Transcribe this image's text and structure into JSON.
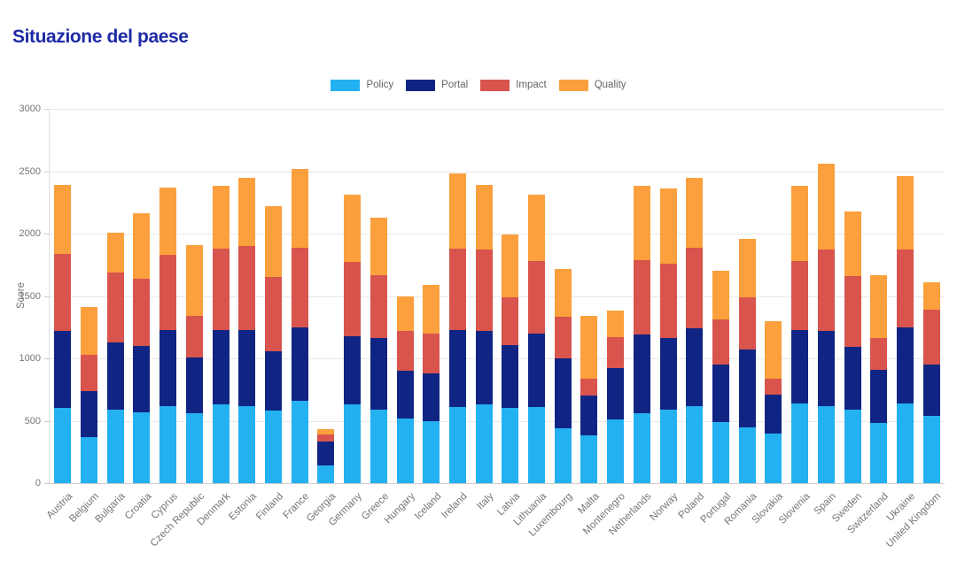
{
  "title": "Situazione del paese",
  "colors": {
    "title_text": "#1f2aa6",
    "axis_text": "#757575",
    "legend_text": "#666666",
    "gridline": "#e8e8e8",
    "baseline": "#cccccc",
    "axis_line": "#e0e0e0",
    "policy": "#23b1f2",
    "portal": "#102583",
    "impact": "#d8544d",
    "quality": "#fba03c"
  },
  "chart_data": {
    "type": "bar",
    "stacked": true,
    "title": "Situazione del paese",
    "xlabel": "",
    "ylabel": "Score",
    "ylim": [
      0,
      3000
    ],
    "ytick_step": 500,
    "grid": true,
    "legend_position": "top-center",
    "categories": [
      "Austria",
      "Belgium",
      "Bulgaria",
      "Croatia",
      "Cyprus",
      "Czech Republic",
      "Denmark",
      "Estonia",
      "Finland",
      "France",
      "Georgia",
      "Germany",
      "Greece",
      "Hungary",
      "Iceland",
      "Ireland",
      "Italy",
      "Latvia",
      "Lithuania",
      "Luxembourg",
      "Malta",
      "Montenegro",
      "Netherlands",
      "Norway",
      "Poland",
      "Portugal",
      "Romania",
      "Slovakia",
      "Slovenia",
      "Spain",
      "Sweden",
      "Switzerland",
      "Ukraine",
      "United Kingdom"
    ],
    "series": [
      {
        "name": "Policy",
        "color": "#23b1f2",
        "values": [
          600,
          370,
          590,
          570,
          620,
          560,
          630,
          620,
          580,
          660,
          140,
          630,
          590,
          520,
          500,
          610,
          630,
          600,
          610,
          440,
          380,
          510,
          560,
          590,
          620,
          490,
          450,
          400,
          640,
          620,
          590,
          480,
          640,
          540
        ]
      },
      {
        "name": "Portal",
        "color": "#102583",
        "values": [
          620,
          370,
          540,
          530,
          610,
          450,
          600,
          610,
          480,
          590,
          190,
          550,
          570,
          380,
          380,
          620,
          590,
          510,
          590,
          560,
          320,
          410,
          630,
          570,
          620,
          460,
          620,
          310,
          590,
          600,
          500,
          430,
          610,
          410
        ]
      },
      {
        "name": "Impact",
        "color": "#d8544d",
        "values": [
          620,
          290,
          560,
          540,
          600,
          330,
          650,
          670,
          590,
          640,
          60,
          590,
          510,
          320,
          320,
          650,
          650,
          380,
          580,
          330,
          140,
          250,
          600,
          600,
          650,
          360,
          420,
          130,
          550,
          650,
          570,
          250,
          620,
          440
        ]
      },
      {
        "name": "Quality",
        "color": "#fba03c",
        "values": [
          550,
          380,
          320,
          520,
          540,
          570,
          500,
          550,
          570,
          630,
          40,
          540,
          460,
          280,
          390,
          600,
          520,
          500,
          530,
          390,
          500,
          210,
          590,
          600,
          560,
          390,
          470,
          460,
          600,
          690,
          520,
          510,
          590,
          220
        ]
      }
    ],
    "totals": [
      2390,
      1410,
      2010,
      2160,
      2370,
      1910,
      2380,
      2450,
      2220,
      2520,
      430,
      2310,
      2130,
      1500,
      1590,
      2480,
      2390,
      1990,
      2310,
      1720,
      1340,
      1380,
      2380,
      2360,
      2450,
      1700,
      1960,
      1300,
      2380,
      2560,
      2180,
      1670,
      2460,
      1610
    ]
  }
}
